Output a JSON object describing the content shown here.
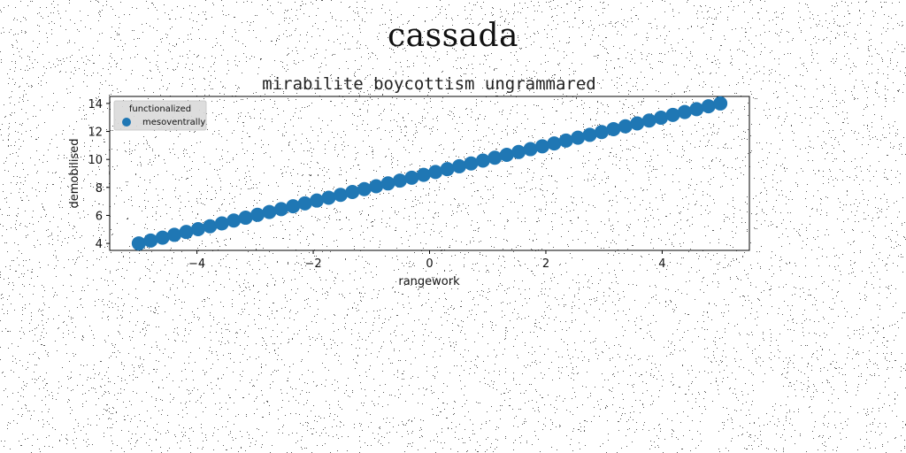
{
  "suptitle": "cassada",
  "chart_data": {
    "type": "scatter",
    "title": "mirabilite boycottism ungrammared",
    "xlabel": "rangework",
    "ylabel": "demobilised",
    "xlim": [
      -5.5,
      5.5
    ],
    "ylim": [
      3.5,
      14.5
    ],
    "xticks": [
      -4,
      -2,
      0,
      2,
      4
    ],
    "xtick_labels": [
      "−4",
      "−2",
      "0",
      "2",
      "4"
    ],
    "yticks": [
      4,
      6,
      8,
      10,
      12,
      14
    ],
    "ytick_labels": [
      "4",
      "6",
      "8",
      "10",
      "12",
      "14"
    ],
    "grid": false,
    "legend": {
      "title": "functionalized",
      "placement": "top-left"
    },
    "series": [
      {
        "name": "mesoventrally",
        "color": "#1f77b4",
        "marker": "circle",
        "x_range": [
          -5,
          5
        ],
        "n_points": 50,
        "relation": "y = x + 9",
        "x": [
          -5.0,
          -4.796,
          -4.592,
          -4.388,
          -4.184,
          -3.98,
          -3.776,
          -3.571,
          -3.367,
          -3.163,
          -2.959,
          -2.755,
          -2.551,
          -2.347,
          -2.143,
          -1.939,
          -1.735,
          -1.531,
          -1.327,
          -1.122,
          -0.918,
          -0.714,
          -0.51,
          -0.306,
          -0.102,
          0.102,
          0.306,
          0.51,
          0.714,
          0.918,
          1.122,
          1.327,
          1.531,
          1.735,
          1.939,
          2.143,
          2.347,
          2.551,
          2.755,
          2.959,
          3.163,
          3.367,
          3.571,
          3.776,
          3.98,
          4.184,
          4.388,
          4.592,
          4.796,
          5.0
        ],
        "y": [
          4.0,
          4.204,
          4.408,
          4.612,
          4.816,
          5.02,
          5.224,
          5.429,
          5.633,
          5.837,
          6.041,
          6.245,
          6.449,
          6.653,
          6.857,
          7.061,
          7.265,
          7.469,
          7.673,
          7.878,
          8.082,
          8.286,
          8.49,
          8.694,
          8.898,
          9.102,
          9.306,
          9.51,
          9.714,
          9.918,
          10.122,
          10.327,
          10.531,
          10.735,
          10.939,
          11.143,
          11.347,
          11.551,
          11.755,
          11.959,
          12.163,
          12.367,
          12.571,
          12.776,
          12.98,
          13.184,
          13.388,
          13.592,
          13.796,
          14.0
        ]
      }
    ]
  }
}
